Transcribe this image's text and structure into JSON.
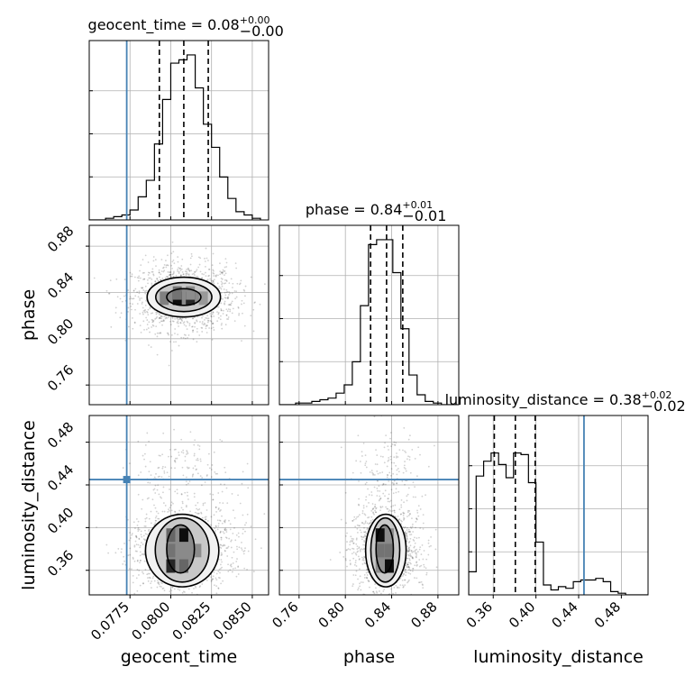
{
  "chart_data": {
    "type": "corner",
    "parameters": [
      {
        "name": "geocent_time",
        "axis_label": "geocent_time",
        "range": [
          0.075,
          0.086
        ],
        "ticks": [
          0.0775,
          0.08,
          0.0825,
          0.085
        ],
        "tick_labels": [
          "0.0775",
          "0.0800",
          "0.0825",
          "0.0850"
        ],
        "title": {
          "base": "geocent_time = 0.08",
          "sup": "+0.00",
          "sub": "−0.00"
        },
        "median": 0.0808,
        "quantiles": [
          0.0793,
          0.0808,
          0.0823
        ],
        "truth": 0.0773,
        "hist_edges": [
          0.075,
          0.0755,
          0.076,
          0.0765,
          0.077,
          0.0775,
          0.078,
          0.0785,
          0.079,
          0.0795,
          0.08,
          0.0805,
          0.081,
          0.0815,
          0.082,
          0.0825,
          0.083,
          0.0835,
          0.084,
          0.0845,
          0.085,
          0.0855
        ],
        "hist_values": [
          0.0,
          0.0,
          0.01,
          0.02,
          0.03,
          0.06,
          0.14,
          0.24,
          0.46,
          0.73,
          0.95,
          0.97,
          1.0,
          0.8,
          0.58,
          0.44,
          0.26,
          0.13,
          0.05,
          0.03,
          0.01
        ]
      },
      {
        "name": "phase",
        "axis_label": "phase",
        "range": [
          0.743,
          0.898
        ],
        "ticks": [
          0.76,
          0.8,
          0.84,
          0.88
        ],
        "tick_labels": [
          "0.76",
          "0.80",
          "0.84",
          "0.88"
        ],
        "title": {
          "base": "phase = 0.84",
          "sup": "+0.01",
          "sub": "−0.01"
        },
        "median": 0.8356,
        "quantiles": [
          0.8218,
          0.8356,
          0.8496
        ],
        "truth": null,
        "hist_edges": [
          0.743,
          0.75,
          0.757,
          0.764,
          0.771,
          0.778,
          0.785,
          0.792,
          0.799,
          0.806,
          0.813,
          0.82,
          0.827,
          0.834,
          0.841,
          0.848,
          0.855,
          0.862,
          0.869,
          0.876,
          0.883,
          0.89,
          0.897
        ],
        "hist_values": [
          0.0,
          0.0,
          0.01,
          0.01,
          0.02,
          0.03,
          0.04,
          0.07,
          0.12,
          0.26,
          0.6,
          0.97,
          1.0,
          1.0,
          0.8,
          0.46,
          0.18,
          0.06,
          0.02,
          0.01,
          0.0,
          0.0
        ]
      },
      {
        "name": "luminosity_distance",
        "axis_label": "luminosity_distance",
        "range": [
          0.337,
          0.505
        ],
        "ticks": [
          0.36,
          0.4,
          0.44,
          0.48
        ],
        "tick_labels": [
          "0.36",
          "0.40",
          "0.44",
          "0.48"
        ],
        "title": {
          "base": "luminosity_distance = 0.38",
          "sup": "+0.02",
          "sub": "−0.02"
        },
        "median": 0.3807,
        "quantiles": [
          0.361,
          0.3807,
          0.3993
        ],
        "truth": 0.445,
        "hist_edges": [
          0.337,
          0.344,
          0.351,
          0.358,
          0.365,
          0.372,
          0.379,
          0.386,
          0.393,
          0.4,
          0.407,
          0.414,
          0.421,
          0.428,
          0.435,
          0.442,
          0.449,
          0.456,
          0.463,
          0.47,
          0.477,
          0.484,
          0.491,
          0.498,
          0.505
        ],
        "hist_values": [
          0.14,
          0.72,
          0.81,
          0.86,
          0.79,
          0.71,
          0.86,
          0.85,
          0.68,
          0.32,
          0.06,
          0.03,
          0.05,
          0.04,
          0.08,
          0.09,
          0.09,
          0.1,
          0.08,
          0.02,
          0.01,
          0.0,
          0.0,
          0.0
        ]
      }
    ],
    "pairs": [
      {
        "x": "geocent_time",
        "y": "phase",
        "truth": [
          0.0773,
          null
        ],
        "density_cells": [
          {
            "x": 0.0804,
            "y": 0.835,
            "level": 0.95
          },
          {
            "x": 0.0812,
            "y": 0.835,
            "level": 0.85
          },
          {
            "x": 0.0804,
            "y": 0.8395,
            "level": 0.55
          },
          {
            "x": 0.0812,
            "y": 0.8395,
            "level": 0.45
          },
          {
            "x": 0.0796,
            "y": 0.835,
            "level": 0.5
          },
          {
            "x": 0.082,
            "y": 0.835,
            "level": 0.4
          }
        ],
        "contours": [
          {
            "cx": 0.0808,
            "cy": 0.836,
            "rx": 0.00105,
            "ry": 0.0072
          },
          {
            "cx": 0.0808,
            "cy": 0.836,
            "rx": 0.00172,
            "ry": 0.0125
          },
          {
            "cx": 0.0808,
            "cy": 0.836,
            "rx": 0.00225,
            "ry": 0.0172
          }
        ]
      },
      {
        "x": "geocent_time",
        "y": "luminosity_distance",
        "truth": [
          0.0773,
          0.445
        ],
        "density_cells": [
          {
            "x": 0.0808,
            "y": 0.393,
            "level": 0.95
          },
          {
            "x": 0.08,
            "y": 0.393,
            "level": 0.6
          },
          {
            "x": 0.08,
            "y": 0.364,
            "level": 0.85
          },
          {
            "x": 0.0808,
            "y": 0.364,
            "level": 0.6
          },
          {
            "x": 0.08,
            "y": 0.3785,
            "level": 0.55
          },
          {
            "x": 0.0816,
            "y": 0.3785,
            "level": 0.45
          }
        ],
        "contours": [
          {
            "cx": 0.0806,
            "cy": 0.38,
            "rx": 0.00085,
            "ry": 0.0225
          },
          {
            "cx": 0.0807,
            "cy": 0.379,
            "rx": 0.00165,
            "ry": 0.03
          },
          {
            "cx": 0.0807,
            "cy": 0.3785,
            "rx": 0.00225,
            "ry": 0.034
          }
        ]
      },
      {
        "x": "phase",
        "y": "luminosity_distance",
        "truth": [
          null,
          0.445
        ],
        "density_cells": [
          {
            "x": 0.83,
            "y": 0.393,
            "level": 0.95
          },
          {
            "x": 0.838,
            "y": 0.364,
            "level": 0.95
          },
          {
            "x": 0.83,
            "y": 0.3785,
            "level": 0.55
          },
          {
            "x": 0.838,
            "y": 0.3785,
            "level": 0.55
          },
          {
            "x": 0.83,
            "y": 0.364,
            "level": 0.45
          },
          {
            "x": 0.838,
            "y": 0.393,
            "level": 0.45
          }
        ],
        "contours": [
          {
            "cx": 0.834,
            "cy": 0.38,
            "rx": 0.0075,
            "ry": 0.0225
          },
          {
            "cx": 0.8345,
            "cy": 0.379,
            "rx": 0.0125,
            "ry": 0.03
          },
          {
            "cx": 0.835,
            "cy": 0.3785,
            "rx": 0.0175,
            "ry": 0.034
          }
        ]
      }
    ],
    "colors": {
      "truth": "#4682b4",
      "hist": "#000000",
      "grid": "#b0b0b0"
    },
    "grid": true
  }
}
